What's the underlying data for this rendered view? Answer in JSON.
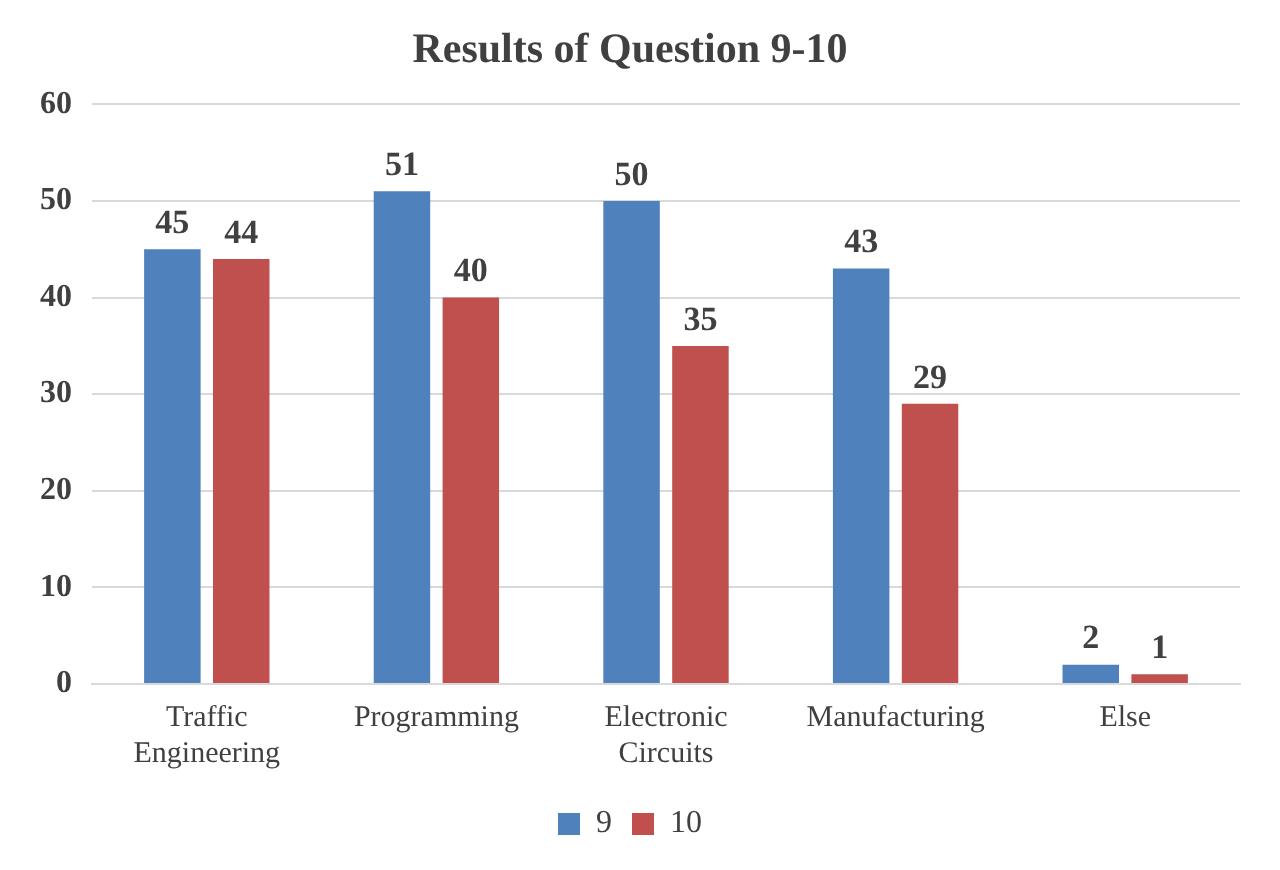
{
  "chart_data": {
    "type": "bar",
    "title": "Results of Question 9-10",
    "categories": [
      "Traffic Engineering",
      "Programming",
      "Electronic Circuits",
      "Manufacturing",
      "Else"
    ],
    "series": [
      {
        "name": "9",
        "color": "#4f81bd",
        "values": [
          45,
          51,
          50,
          43,
          2
        ]
      },
      {
        "name": "10",
        "color": "#c0504d",
        "values": [
          44,
          40,
          35,
          29,
          1
        ]
      }
    ],
    "ylim": [
      0,
      60
    ],
    "yticks": [
      0,
      10,
      20,
      30,
      40,
      50,
      60
    ],
    "grid": "y",
    "legend": "bottom",
    "data_labels": true
  }
}
